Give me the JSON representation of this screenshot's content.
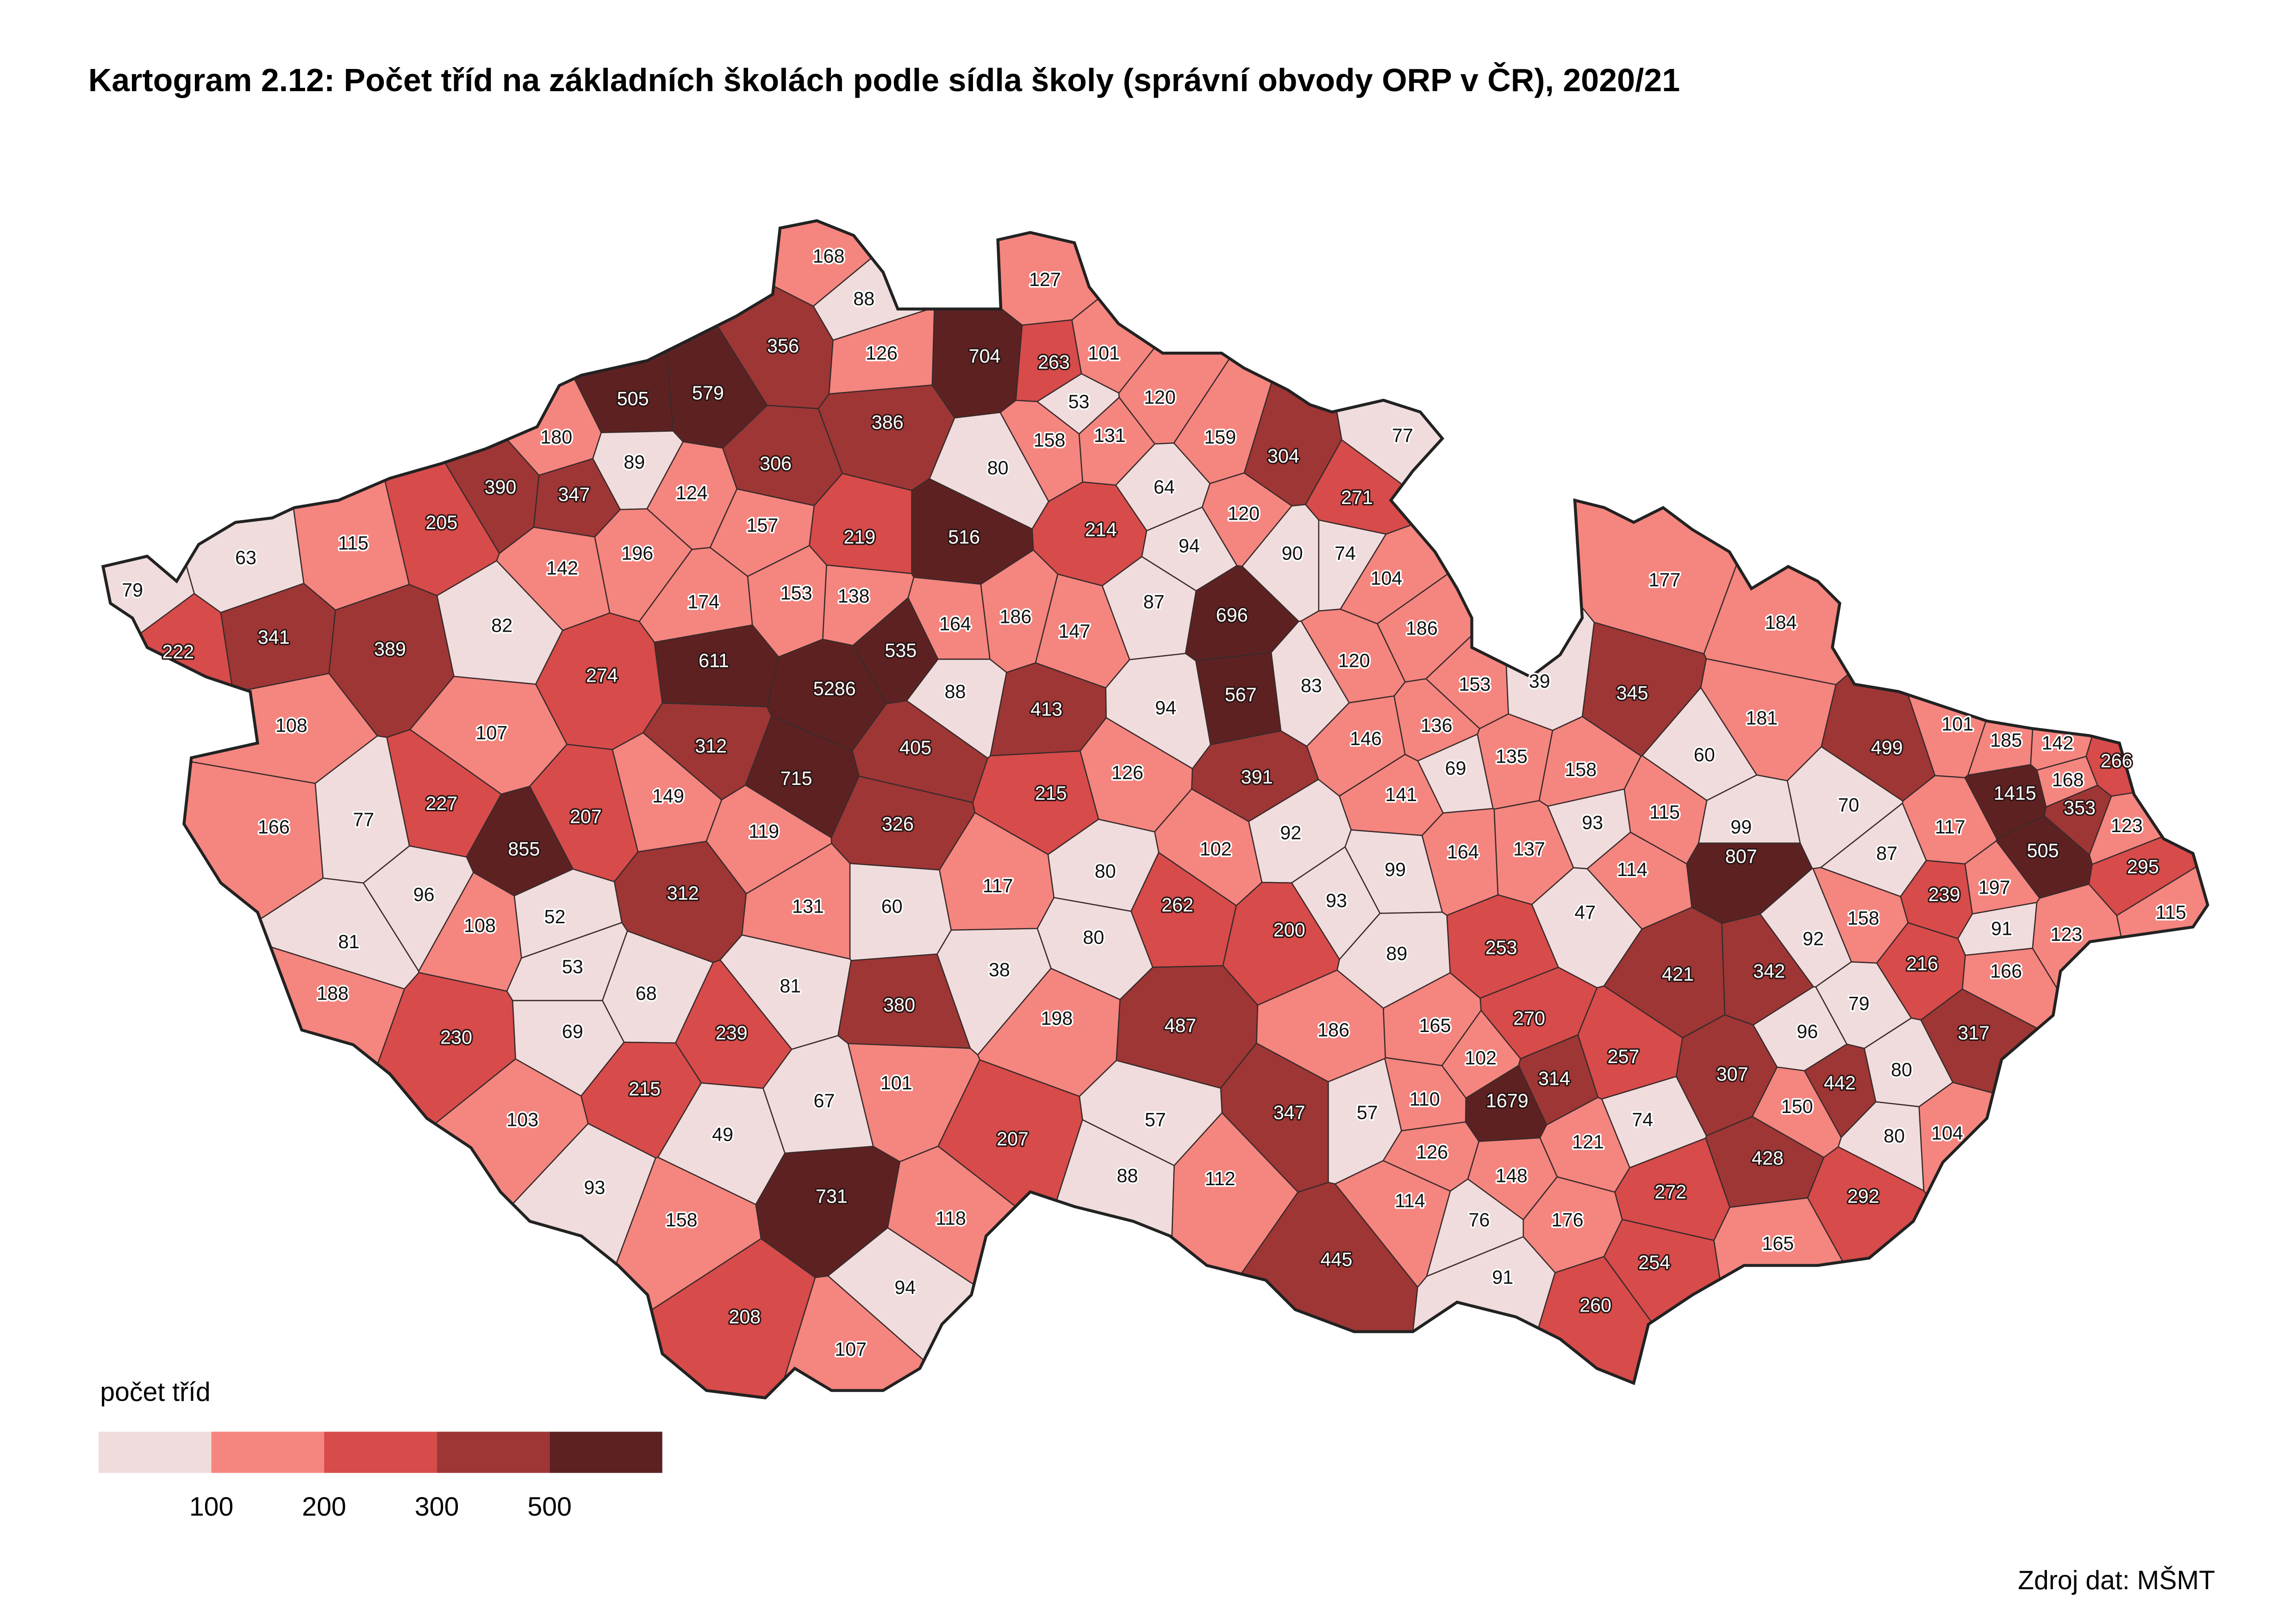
{
  "title": "Kartogram 2.12: Počet tříd na základních školách podle sídla školy (správní obvody ORP v ČR), 2020/21",
  "legend": {
    "title": "počet tříd",
    "breaks": [
      100,
      200,
      300,
      500
    ],
    "colors": [
      "#f0dcdc",
      "#f5857f",
      "#d74b4a",
      "#9e3635",
      "#5e2122"
    ]
  },
  "source": "Zdroj dat: MŠMT",
  "values": [
    168,
    88,
    127,
    356,
    126,
    704,
    263,
    101,
    53,
    505,
    579,
    386,
    120,
    77,
    180,
    89,
    306,
    80,
    158,
    131,
    159,
    304,
    390,
    347,
    124,
    64,
    271,
    205,
    115,
    157,
    219,
    516,
    214,
    120,
    63,
    142,
    196,
    94,
    90,
    74,
    79,
    174,
    153,
    138,
    87,
    696,
    104,
    82,
    164,
    186,
    147,
    535,
    186,
    177,
    184,
    222,
    341,
    389,
    611,
    274,
    5286,
    88,
    413,
    94,
    567,
    83,
    120,
    153,
    39,
    345,
    108,
    107,
    312,
    405,
    715,
    126,
    391,
    146,
    136,
    135,
    181,
    499,
    101,
    185,
    142,
    266,
    166,
    77,
    227,
    207,
    149,
    326,
    215,
    69,
    141,
    158,
    60,
    1415,
    168,
    353,
    70,
    855,
    119,
    92,
    93,
    115,
    99,
    164,
    137,
    117,
    123,
    87,
    99,
    102,
    96,
    312,
    131,
    60,
    117,
    80,
    114,
    807,
    505,
    295,
    197,
    239,
    52,
    108,
    81,
    93,
    47,
    158,
    91,
    123,
    115,
    262,
    200,
    92,
    80,
    53,
    38,
    89,
    253,
    421,
    342,
    216,
    166,
    68,
    81,
    380,
    188,
    79,
    198,
    270,
    186,
    487,
    165,
    230,
    239,
    69,
    96,
    317,
    257,
    102,
    314,
    1679,
    307,
    442,
    80,
    215,
    101,
    67,
    110,
    347,
    57,
    150,
    103,
    57,
    207,
    49,
    74,
    121,
    80,
    104,
    126,
    428,
    148,
    93,
    731,
    88,
    112,
    272,
    292,
    114,
    76,
    176,
    158,
    118,
    165,
    254,
    445,
    91,
    94,
    260,
    208,
    107
  ]
}
